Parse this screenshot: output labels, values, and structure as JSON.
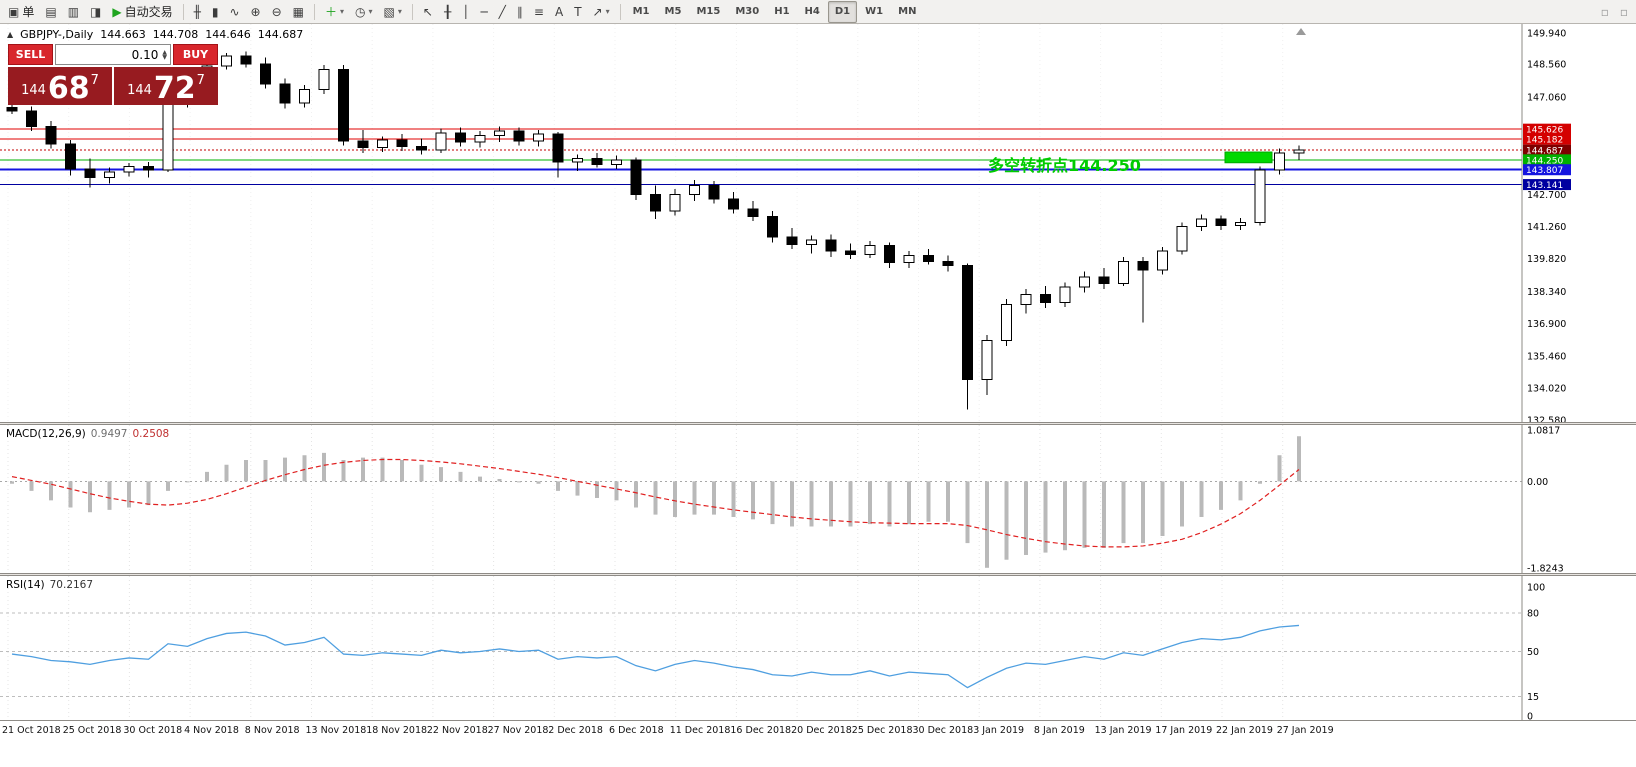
{
  "toolbar": {
    "left_items": [
      {
        "name": "new-order",
        "glyph": "▣",
        "label": "单"
      },
      {
        "name": "chart-profiles",
        "glyph": "▤"
      },
      {
        "name": "data-window",
        "glyph": "▥"
      },
      {
        "name": "navigator",
        "glyph": "◨"
      },
      {
        "name": "autotrading",
        "glyph": "▶",
        "glyph_color": "#1fa41f",
        "label": "自动交易"
      }
    ],
    "chart_items": [
      {
        "name": "bar-chart-mode",
        "glyph": "╫"
      },
      {
        "name": "candlestick-mode",
        "glyph": "▮"
      },
      {
        "name": "line-chart-mode",
        "glyph": "∿"
      },
      {
        "name": "zoom-in",
        "glyph": "⊕"
      },
      {
        "name": "zoom-out",
        "glyph": "⊖"
      },
      {
        "name": "tile-windows",
        "glyph": "▦"
      }
    ],
    "insert_items": [
      {
        "name": "indicators-list",
        "glyph": "＋",
        "glyph_color": "#1fa41f",
        "caret": true
      },
      {
        "name": "periods",
        "glyph": "◷",
        "caret": true
      },
      {
        "name": "templates",
        "glyph": "▧",
        "caret": true
      }
    ],
    "draw_items": [
      {
        "name": "cursor",
        "glyph": "↖"
      },
      {
        "name": "crosshair",
        "glyph": "╂"
      },
      {
        "name": "vertical-line-tool",
        "glyph": "│"
      },
      {
        "name": "horizontal-line-tool",
        "glyph": "─"
      },
      {
        "name": "trendline-tool",
        "glyph": "╱"
      },
      {
        "name": "channel-tool",
        "glyph": "∥"
      },
      {
        "name": "fibonacci-tool",
        "glyph": "≡"
      },
      {
        "name": "arrow-style-tool",
        "glyph": "A"
      },
      {
        "name": "text-label-tool",
        "glyph": "T"
      },
      {
        "name": "arrows-tool",
        "glyph": "↗",
        "caret": true
      }
    ],
    "timeframes": [
      {
        "label": "M1"
      },
      {
        "label": "M5"
      },
      {
        "label": "M15"
      },
      {
        "label": "M30"
      },
      {
        "label": "H1"
      },
      {
        "label": "H4"
      },
      {
        "label": "D1",
        "active": true
      },
      {
        "label": "W1"
      },
      {
        "label": "MN"
      }
    ],
    "right_items": [
      {
        "name": "window-tool-1",
        "glyph": "▫"
      },
      {
        "name": "window-tool-2",
        "glyph": "▫"
      }
    ]
  },
  "chart_header": {
    "collapse_icon": "▲",
    "symbol": "GBPJPY-,Daily",
    "open": "144.663",
    "high": "144.708",
    "low": "144.646",
    "close": "144.687"
  },
  "one_click": {
    "sell_label": "SELL",
    "buy_label": "BUY",
    "volume": "0.10",
    "sell_price": {
      "prefix": "144",
      "big": "68",
      "sup": "7"
    },
    "buy_price": {
      "prefix": "144",
      "big": "72",
      "sup": "7"
    }
  },
  "indicators": {
    "macd": {
      "name": "MACD(12,26,9)",
      "value_main": "0.9497",
      "value_signal": "0.2508"
    },
    "rsi": {
      "name": "RSI(14)",
      "value": "70.2167"
    }
  },
  "chart_data": [
    {
      "type": "candlestick",
      "title": "GBPJPY-,Daily",
      "ylim": [
        132.58,
        149.94
      ],
      "y_axis_labels": [
        {
          "price": 149.94,
          "text": "149.940"
        },
        {
          "price": 148.56,
          "text": "148.560"
        },
        {
          "price": 147.06,
          "text": "147.060"
        },
        {
          "price": 142.7,
          "text": "142.700"
        },
        {
          "price": 141.26,
          "text": "141.260"
        },
        {
          "price": 139.82,
          "text": "139.820"
        },
        {
          "price": 138.34,
          "text": "138.340"
        },
        {
          "price": 136.9,
          "text": "136.900"
        },
        {
          "price": 135.46,
          "text": "135.460"
        },
        {
          "price": 134.02,
          "text": "134.020"
        },
        {
          "price": 132.58,
          "text": "132.580"
        }
      ],
      "x_labels": [
        "21 Oct 2018",
        "25 Oct 2018",
        "30 Oct 2018",
        "4 Nov 2018",
        "8 Nov 2018",
        "13 Nov 2018",
        "18 Nov 2018",
        "22 Nov 2018",
        "27 Nov 2018",
        "2 Dec 2018",
        "6 Dec 2018",
        "11 Dec 2018",
        "16 Dec 2018",
        "20 Dec 2018",
        "25 Dec 2018",
        "30 Dec 2018",
        "3 Jan 2019",
        "8 Jan 2019",
        "13 Jan 2019",
        "17 Jan 2019",
        "22 Jan 2019",
        "27 Jan 2019"
      ],
      "ohlc": [
        [
          146.6,
          146.85,
          146.3,
          146.45
        ],
        [
          146.45,
          146.65,
          145.55,
          145.75
        ],
        [
          145.75,
          146.0,
          144.75,
          144.95
        ],
        [
          144.95,
          145.15,
          143.55,
          143.85
        ],
        [
          143.85,
          144.3,
          143.0,
          143.45
        ],
        [
          143.45,
          143.9,
          143.2,
          143.7
        ],
        [
          143.7,
          144.1,
          143.5,
          143.95
        ],
        [
          143.95,
          144.15,
          143.45,
          143.8
        ],
        [
          143.8,
          147.6,
          143.7,
          147.45
        ],
        [
          147.45,
          147.7,
          146.6,
          146.85
        ],
        [
          146.85,
          148.65,
          146.75,
          148.45
        ],
        [
          148.45,
          149.05,
          148.3,
          148.9
        ],
        [
          148.9,
          149.1,
          148.4,
          148.55
        ],
        [
          148.55,
          148.85,
          147.45,
          147.65
        ],
        [
          147.65,
          147.9,
          146.55,
          146.8
        ],
        [
          146.8,
          147.6,
          146.6,
          147.4
        ],
        [
          147.4,
          148.5,
          147.2,
          148.3
        ],
        [
          148.3,
          148.5,
          144.9,
          145.1
        ],
        [
          145.1,
          145.6,
          144.55,
          144.8
        ],
        [
          144.8,
          145.3,
          144.6,
          145.15
        ],
        [
          145.15,
          145.4,
          144.65,
          144.85
        ],
        [
          144.85,
          145.2,
          144.5,
          144.7
        ],
        [
          144.7,
          145.65,
          144.55,
          145.45
        ],
        [
          145.45,
          145.7,
          144.85,
          145.05
        ],
        [
          145.05,
          145.55,
          144.8,
          145.35
        ],
        [
          145.35,
          145.75,
          145.05,
          145.55
        ],
        [
          145.55,
          145.7,
          144.9,
          145.1
        ],
        [
          145.1,
          145.6,
          144.85,
          145.4
        ],
        [
          145.4,
          145.5,
          143.45,
          144.15
        ],
        [
          144.15,
          144.5,
          143.75,
          144.3
        ],
        [
          144.3,
          144.55,
          143.9,
          144.05
        ],
        [
          144.05,
          144.45,
          143.85,
          144.25
        ],
        [
          144.25,
          144.35,
          142.45,
          142.7
        ],
        [
          142.7,
          143.1,
          141.6,
          141.95
        ],
        [
          141.95,
          142.95,
          141.75,
          142.7
        ],
        [
          142.7,
          143.35,
          142.4,
          143.1
        ],
        [
          143.1,
          143.3,
          142.3,
          142.5
        ],
        [
          142.5,
          142.8,
          141.85,
          142.05
        ],
        [
          142.05,
          142.4,
          141.5,
          141.7
        ],
        [
          141.7,
          141.95,
          140.55,
          140.8
        ],
        [
          140.8,
          141.2,
          140.25,
          140.45
        ],
        [
          140.45,
          140.85,
          140.05,
          140.65
        ],
        [
          140.65,
          140.9,
          139.9,
          140.15
        ],
        [
          140.15,
          140.5,
          139.8,
          140.0
        ],
        [
          140.0,
          140.6,
          139.85,
          140.4
        ],
        [
          140.4,
          140.55,
          139.4,
          139.65
        ],
        [
          139.65,
          140.15,
          139.4,
          139.95
        ],
        [
          139.95,
          140.25,
          139.55,
          139.7
        ],
        [
          139.7,
          139.95,
          139.25,
          139.5
        ],
        [
          139.5,
          139.6,
          133.05,
          134.4
        ],
        [
          134.4,
          136.4,
          133.7,
          136.15
        ],
        [
          136.15,
          138.0,
          135.9,
          137.75
        ],
        [
          137.75,
          138.45,
          137.35,
          138.2
        ],
        [
          138.2,
          138.6,
          137.6,
          137.85
        ],
        [
          137.85,
          138.75,
          137.65,
          138.55
        ],
        [
          138.55,
          139.25,
          138.3,
          139.0
        ],
        [
          139.0,
          139.4,
          138.45,
          138.7
        ],
        [
          138.7,
          139.9,
          138.6,
          139.7
        ],
        [
          139.7,
          139.9,
          136.95,
          139.3
        ],
        [
          139.3,
          140.35,
          139.1,
          140.15
        ],
        [
          140.15,
          141.45,
          140.0,
          141.25
        ],
        [
          141.25,
          141.8,
          141.05,
          141.6
        ],
        [
          141.6,
          141.75,
          141.1,
          141.3
        ],
        [
          141.3,
          141.65,
          141.1,
          141.45
        ],
        [
          141.45,
          143.95,
          141.3,
          143.8
        ],
        [
          143.8,
          144.75,
          143.6,
          144.55
        ],
        [
          144.55,
          144.9,
          144.25,
          144.69
        ]
      ],
      "hlines": [
        {
          "price": 145.626,
          "label": "145.626",
          "color": "#e00000",
          "tag_bg": "#d40000",
          "width": 1
        },
        {
          "price": 145.182,
          "label": "145.182",
          "color": "#e00000",
          "tag_bg": "#d40000",
          "width": 1
        },
        {
          "price": 144.687,
          "label": "144.687",
          "color": "#c00000",
          "tag_bg": "#7e0000",
          "width": 1,
          "style": "dotted"
        },
        {
          "price": 144.25,
          "label": "144.250",
          "color": "#00b000",
          "tag_bg": "#00b000",
          "width": 1
        },
        {
          "price": 143.807,
          "label": "143.807",
          "color": "#1414e0",
          "tag_bg": "#1414e0",
          "width": 2
        },
        {
          "price": 143.141,
          "label": "143.141",
          "color": "#0000a0",
          "tag_bg": "#0000a0",
          "width": 1
        }
      ],
      "annotation": {
        "text": "多空转折点144.250",
        "color": "#00cc00",
        "x": 988,
        "price": 144.38
      },
      "highlight_rect": {
        "x": 1225,
        "width": 47,
        "price_top": 144.6,
        "price_bottom": 144.12,
        "fill": "#00d800",
        "stroke": "#00a800"
      }
    },
    {
      "type": "bar",
      "name": "MACD(12,26,9)",
      "current_values": [
        0.9497,
        0.2508
      ],
      "ylim": [
        -1.8243,
        1.0817
      ],
      "axis_labels": [
        {
          "v": 1.0817,
          "text": "1.0817"
        },
        {
          "v": 0,
          "text": "0.00"
        },
        {
          "v": -1.8243,
          "text": "-1.8243"
        }
      ],
      "hist_color": "#b9b9b9",
      "signal_color": "#e02020",
      "histogram": [
        -0.05,
        -0.2,
        -0.4,
        -0.55,
        -0.65,
        -0.6,
        -0.55,
        -0.5,
        -0.2,
        0.0,
        0.2,
        0.35,
        0.45,
        0.45,
        0.5,
        0.55,
        0.6,
        0.45,
        0.5,
        0.5,
        0.45,
        0.35,
        0.3,
        0.2,
        0.1,
        0.05,
        0.0,
        -0.05,
        -0.2,
        -0.3,
        -0.35,
        -0.4,
        -0.55,
        -0.7,
        -0.75,
        -0.7,
        -0.7,
        -0.75,
        -0.8,
        -0.9,
        -0.95,
        -0.95,
        -0.95,
        -0.95,
        -0.9,
        -0.95,
        -0.9,
        -0.85,
        -0.85,
        -1.3,
        -1.82,
        -1.65,
        -1.55,
        -1.5,
        -1.45,
        -1.4,
        -1.4,
        -1.3,
        -1.3,
        -1.15,
        -0.95,
        -0.75,
        -0.6,
        -0.4,
        -0.05,
        0.55,
        0.95
      ],
      "signal": [
        0.1,
        0.02,
        -0.06,
        -0.16,
        -0.26,
        -0.35,
        -0.42,
        -0.48,
        -0.5,
        -0.46,
        -0.38,
        -0.26,
        -0.12,
        0.02,
        0.14,
        0.25,
        0.34,
        0.4,
        0.44,
        0.46,
        0.46,
        0.44,
        0.41,
        0.37,
        0.32,
        0.27,
        0.21,
        0.15,
        0.08,
        0.0,
        -0.08,
        -0.16,
        -0.24,
        -0.33,
        -0.41,
        -0.48,
        -0.54,
        -0.6,
        -0.65,
        -0.7,
        -0.75,
        -0.79,
        -0.82,
        -0.85,
        -0.87,
        -0.88,
        -0.89,
        -0.89,
        -0.89,
        -0.93,
        -1.02,
        -1.12,
        -1.2,
        -1.27,
        -1.32,
        -1.36,
        -1.38,
        -1.38,
        -1.36,
        -1.3,
        -1.22,
        -1.08,
        -0.9,
        -0.68,
        -0.4,
        -0.08,
        0.25
      ]
    },
    {
      "type": "line",
      "name": "RSI(14)",
      "current_value": 70.2167,
      "ylim": [
        0,
        100
      ],
      "levels": [
        80,
        50,
        15
      ],
      "axis_labels": [
        {
          "v": 100,
          "text": "100"
        },
        {
          "v": 80,
          "text": "80"
        },
        {
          "v": 50,
          "text": "50"
        },
        {
          "v": 15,
          "text": "15"
        },
        {
          "v": 0,
          "text": "0"
        }
      ],
      "line_color": "#4f9fe0",
      "values": [
        48,
        46,
        43,
        42,
        40,
        43,
        45,
        44,
        56,
        54,
        60,
        64,
        65,
        62,
        55,
        57,
        61,
        48,
        47,
        49,
        48,
        47,
        51,
        49,
        50,
        52,
        50,
        51,
        44,
        46,
        45,
        46,
        39,
        35,
        40,
        43,
        41,
        38,
        36,
        32,
        31,
        34,
        32,
        32,
        35,
        31,
        34,
        33,
        32,
        22,
        30,
        37,
        41,
        40,
        43,
        46,
        44,
        49,
        47,
        52,
        57,
        60,
        59,
        61,
        66,
        69,
        70.2
      ]
    }
  ]
}
